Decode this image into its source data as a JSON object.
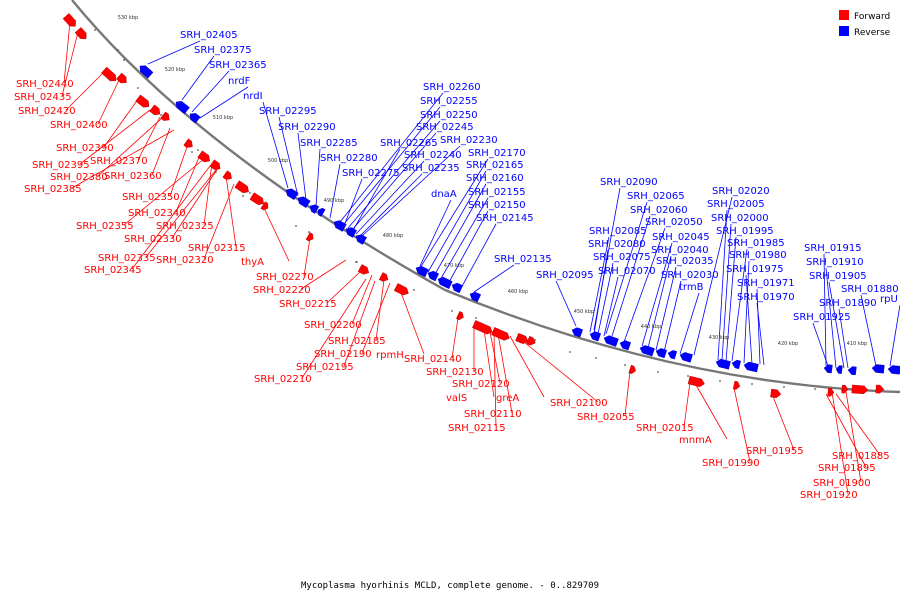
{
  "legend": {
    "items": [
      {
        "label": "Forward",
        "color": "#ff0000"
      },
      {
        "label": "Reverse",
        "color": "#0000ff"
      }
    ]
  },
  "caption": "Mycoplasma hyorhinis MCLD, complete genome. - 0..829709",
  "colors": {
    "forward": "#ff0000",
    "reverse": "#0000ff",
    "backbone": "#777777"
  },
  "kbp_labels": [
    "530 kbp",
    "520 kbp",
    "510 kbp",
    "500 kbp",
    "490 kbp",
    "480 kbp",
    "470 kbp",
    "460 kbp",
    "450 kbp",
    "440 kbp",
    "430 kbp",
    "420 kbp",
    "410 kbp"
  ],
  "forward_labels": [
    "SRH_02440",
    "SRH_02435",
    "SRH_02420",
    "SRH_02400",
    "SRH_02390",
    "SRH_02395",
    "SRH_02370",
    "SRH_02380",
    "SRH_02360",
    "SRH_02385",
    "SRH_02350",
    "SRH_02340",
    "SRH_02355",
    "SRH_02325",
    "SRH_02330",
    "SRH_02315",
    "SRH_02335",
    "SRH_02320",
    "SRH_02345",
    "thyA",
    "SRH_02270",
    "SRH_02220",
    "SRH_02215",
    "SRH_02200",
    "SRH_02185",
    "SRH_02190",
    "rpmH",
    "SRH_02195",
    "SRH_02210",
    "SRH_02140",
    "SRH_02130",
    "SRH_02120",
    "valS",
    "greA",
    "SRH_02100",
    "SRH_02110",
    "SRH_02115",
    "SRH_02055",
    "SRH_02015",
    "mnmA",
    "SRH_01990",
    "SRH_01955",
    "SRH_01885",
    "SRH_01895",
    "SRH_01900",
    "SRH_01920"
  ],
  "reverse_labels": [
    "SRH_02405",
    "SRH_02375",
    "SRH_02365",
    "nrdF",
    "nrdI",
    "SRH_02295",
    "SRH_02290",
    "SRH_02285",
    "SRH_02280",
    "SRH_02275",
    "SRH_02265",
    "SRH_02240",
    "SRH_02235",
    "SRH_02260",
    "SRH_02255",
    "SRH_02250",
    "SRH_02245",
    "SRH_02230",
    "SRH_02170",
    "SRH_02165",
    "SRH_02160",
    "SRH_02155",
    "SRH_02150",
    "SRH_02145",
    "dnaA",
    "SRH_02135",
    "SRH_02095",
    "SRH_02090",
    "SRH_02065",
    "SRH_02060",
    "SRH_02085",
    "SRH_02080",
    "SRH_02075",
    "SRH_02070",
    "SRH_02050",
    "SRH_02045",
    "SRH_02040",
    "SRH_02035",
    "SRH_02030",
    "trmB",
    "SRH_02020",
    "SRH_02005",
    "SRH_02000",
    "SRH_01995",
    "SRH_01985",
    "SRH_01980",
    "SRH_01975",
    "SRH_01971",
    "SRH_01970",
    "SRH_01915",
    "SRH_01910",
    "SRH_01905",
    "SRH_01890",
    "SRH_01880",
    "SRH_01925",
    "rpU"
  ]
}
